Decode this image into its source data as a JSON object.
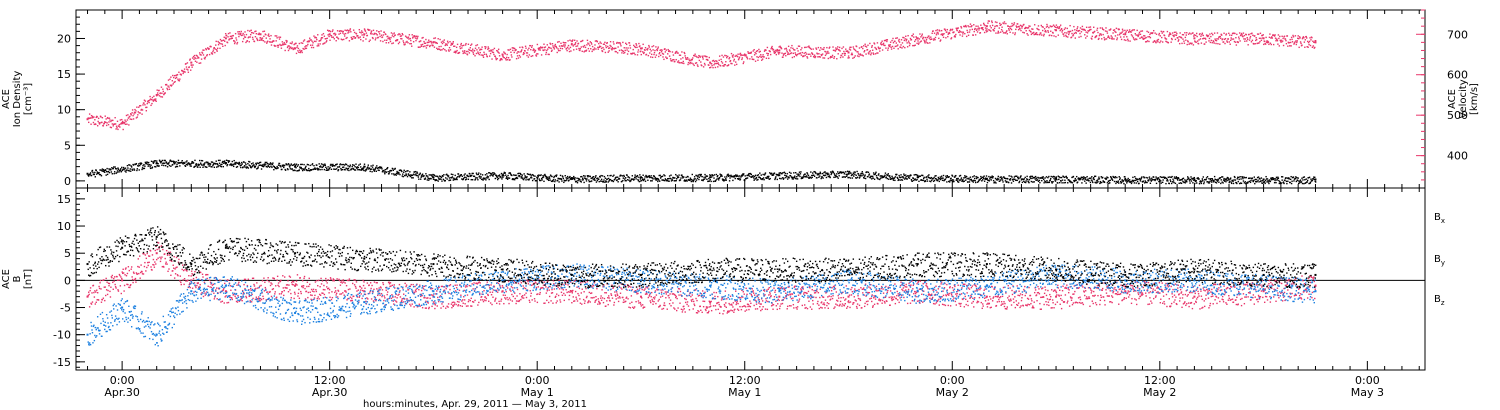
{
  "colors": {
    "black": "#000000",
    "pink": "#e8356a",
    "blue": "#1a7fe0",
    "frame": "#000000"
  },
  "chart_data": [
    {
      "type": "scatter",
      "panel": "top",
      "ylabel_lines": [
        "ACE",
        "Ion Density",
        "[cm⁻³]"
      ],
      "ylim": [
        -1,
        24
      ],
      "yticks": [
        0,
        5,
        10,
        15,
        20
      ],
      "y2label_lines": [
        "ACE",
        "Velocity",
        "[km/s]"
      ],
      "y2lim": [
        320,
        760
      ],
      "y2ticks": [
        400,
        500,
        600,
        700
      ],
      "series": [
        {
          "role": "ion-density",
          "axis": "left",
          "color": "#000000",
          "x": [
            "2011-04-29T22:00",
            "2011-04-30T02:00",
            "2011-04-30T06:00",
            "2011-04-30T10:00",
            "2011-04-30T14:00",
            "2011-04-30T18:00",
            "2011-04-30T22:00",
            "2011-05-01T02:00",
            "2011-05-01T06:00",
            "2011-05-01T10:00",
            "2011-05-01T14:00",
            "2011-05-01T18:00",
            "2011-05-01T22:00",
            "2011-05-02T02:00",
            "2011-05-02T06:00",
            "2011-05-02T10:00",
            "2011-05-02T14:00",
            "2011-05-02T18:00",
            "2011-05-02T21:00"
          ],
          "y": [
            1.0,
            2.5,
            2.5,
            2.0,
            2.0,
            0.5,
            0.8,
            0.3,
            0.5,
            0.5,
            0.8,
            1.0,
            0.5,
            0.3,
            0.3,
            0.2,
            0.2,
            0.2,
            0.2
          ]
        },
        {
          "role": "velocity",
          "axis": "right",
          "color": "#e8356a",
          "x": [
            "2011-04-29T22:00",
            "2011-04-30T00:00",
            "2011-04-30T02:00",
            "2011-04-30T04:00",
            "2011-04-30T06:00",
            "2011-04-30T08:00",
            "2011-04-30T10:00",
            "2011-04-30T12:00",
            "2011-04-30T14:00",
            "2011-04-30T18:00",
            "2011-04-30T22:00",
            "2011-05-01T02:00",
            "2011-05-01T06:00",
            "2011-05-01T10:00",
            "2011-05-01T14:00",
            "2011-05-01T18:00",
            "2011-05-01T22:00",
            "2011-05-02T02:00",
            "2011-05-02T06:00",
            "2011-05-02T10:00",
            "2011-05-02T14:00",
            "2011-05-02T18:00",
            "2011-05-02T21:00"
          ],
          "y": [
            490,
            480,
            550,
            630,
            690,
            700,
            665,
            700,
            700,
            680,
            650,
            675,
            665,
            630,
            660,
            655,
            690,
            720,
            710,
            700,
            690,
            690,
            680
          ]
        }
      ]
    },
    {
      "type": "scatter",
      "panel": "bottom",
      "ylabel_lines": [
        "ACE",
        "B",
        "[nT]"
      ],
      "ylim": [
        -16.5,
        17
      ],
      "yticks": [
        -15,
        -10,
        -5,
        0,
        5,
        10,
        15
      ],
      "xlabel": "hours:minutes, Apr. 29, 2011 — May  3, 2011",
      "xticks": [
        {
          "x": "2011-04-30T00:00",
          "time": "0:00",
          "date": "Apr.30"
        },
        {
          "x": "2011-04-30T12:00",
          "time": "12:00",
          "date": "Apr.30"
        },
        {
          "x": "2011-05-01T00:00",
          "time": "0:00",
          "date": "May 1"
        },
        {
          "x": "2011-05-01T12:00",
          "time": "12:00",
          "date": "May 1"
        },
        {
          "x": "2011-05-02T00:00",
          "time": "0:00",
          "date": "May 2"
        },
        {
          "x": "2011-05-02T12:00",
          "time": "12:00",
          "date": "May 2"
        },
        {
          "x": "2011-05-03T00:00",
          "time": "0:00",
          "date": "May 3"
        }
      ],
      "xlim": [
        "2011-04-29T21:20",
        "2011-05-03T03:20"
      ],
      "series": [
        {
          "name": "Bx",
          "color": "#000000",
          "x": [
            "2011-04-29T22:00",
            "2011-04-30T00:00",
            "2011-04-30T02:00",
            "2011-04-30T04:00",
            "2011-04-30T06:00",
            "2011-04-30T10:00",
            "2011-04-30T14:00",
            "2011-04-30T18:00",
            "2011-04-30T22:00",
            "2011-05-01T02:00",
            "2011-05-01T06:00",
            "2011-05-01T10:00",
            "2011-05-01T14:00",
            "2011-05-01T18:00",
            "2011-05-01T22:00",
            "2011-05-02T02:00",
            "2011-05-02T06:00",
            "2011-05-02T10:00",
            "2011-05-02T14:00",
            "2011-05-02T18:00",
            "2011-05-02T21:00"
          ],
          "y": [
            3,
            6,
            8,
            3,
            6,
            5,
            4,
            3,
            2,
            1,
            1,
            2,
            2,
            2,
            3,
            3,
            2,
            1,
            2,
            1,
            1
          ]
        },
        {
          "name": "By",
          "color": "#1a7fe0",
          "x": [
            "2011-04-29T22:00",
            "2011-04-30T00:00",
            "2011-04-30T02:00",
            "2011-04-30T04:00",
            "2011-04-30T06:00",
            "2011-04-30T10:00",
            "2011-04-30T14:00",
            "2011-04-30T18:00",
            "2011-04-30T22:00",
            "2011-05-01T02:00",
            "2011-05-01T06:00",
            "2011-05-01T10:00",
            "2011-05-01T14:00",
            "2011-05-01T18:00",
            "2011-05-01T22:00",
            "2011-05-02T02:00",
            "2011-05-02T06:00",
            "2011-05-02T10:00",
            "2011-05-02T14:00",
            "2011-05-02T18:00",
            "2011-05-02T21:00"
          ],
          "y": [
            -10,
            -5,
            -10,
            -2,
            -1,
            -6,
            -4,
            -2,
            0,
            1,
            0,
            -1,
            -2,
            0,
            -2,
            -1,
            1,
            0,
            0,
            -1,
            -2
          ]
        },
        {
          "name": "Bz",
          "color": "#e8356a",
          "x": [
            "2011-04-29T22:00",
            "2011-04-30T00:00",
            "2011-04-30T02:00",
            "2011-04-30T04:00",
            "2011-04-30T06:00",
            "2011-04-30T10:00",
            "2011-04-30T14:00",
            "2011-04-30T18:00",
            "2011-04-30T22:00",
            "2011-05-01T02:00",
            "2011-05-01T06:00",
            "2011-05-01T10:00",
            "2011-05-01T14:00",
            "2011-05-01T18:00",
            "2011-05-01T22:00",
            "2011-05-02T02:00",
            "2011-05-02T06:00",
            "2011-05-02T10:00",
            "2011-05-02T14:00",
            "2011-05-02T18:00",
            "2011-05-02T21:00"
          ],
          "y": [
            -3,
            0,
            5,
            0,
            -2,
            -1,
            -2,
            -3,
            -2,
            -2,
            -3,
            -4,
            -3,
            -3,
            -2,
            -3,
            -3,
            -2,
            -3,
            -2,
            -1
          ]
        }
      ],
      "legend": [
        {
          "label": "B",
          "sub": "x",
          "color": "#000000"
        },
        {
          "label": "B",
          "sub": "y",
          "color": "#1a7fe0"
        },
        {
          "label": "B",
          "sub": "z",
          "color": "#e8356a"
        }
      ]
    }
  ]
}
